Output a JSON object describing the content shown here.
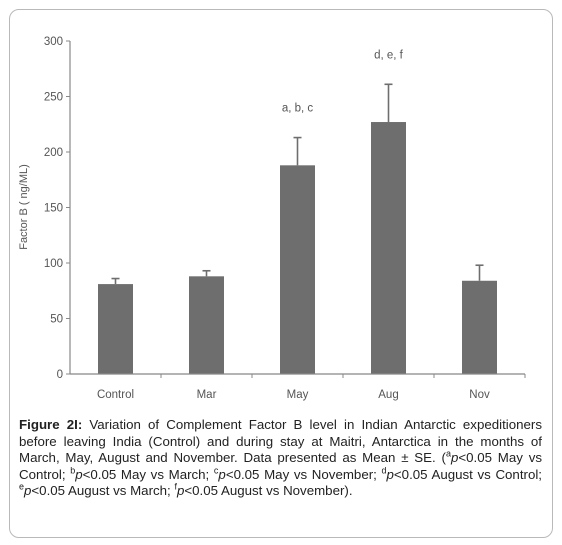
{
  "chart_data": {
    "type": "bar",
    "categories": [
      "Control",
      "Mar",
      "May",
      "Aug",
      "Nov"
    ],
    "values": [
      81,
      88,
      188,
      227,
      84
    ],
    "errors": [
      5,
      5,
      25,
      34,
      14
    ],
    "annotations": [
      "",
      "",
      "a, b, c",
      "d, e, f",
      ""
    ],
    "ylabel": "Factor B ( ng/ML)",
    "ylim": [
      0,
      300
    ],
    "yticks": [
      0,
      50,
      100,
      150,
      200,
      250,
      300
    ],
    "bar_color": "#6e6e6e",
    "grid": false
  },
  "caption": {
    "figure_label": "Figure 2I:",
    "text_1": " Variation of Complement Factor B level in Indian Antarctic expeditioners before leaving India (Control) and during stay at Maitri, Antarctica in the months of March, May, August and November. Data presented as Mean ± SE. (",
    "sup_a": "a",
    "p_a": "p",
    "text_a": "<0.05 May vs Control; ",
    "sup_b": "b",
    "p_b": "p",
    "text_b": "<0.05 May vs March; ",
    "sup_c": "c",
    "p_c": "p",
    "text_c": "<0.05 May vs November; ",
    "sup_d": "d",
    "p_d": "p",
    "text_d": "<0.05 August vs Control; ",
    "sup_e": "e",
    "p_e": "p",
    "text_e": "<0.05 August vs March; ",
    "sup_f": "f",
    "p_f": "p",
    "text_f": "<0.05 August vs November)."
  }
}
